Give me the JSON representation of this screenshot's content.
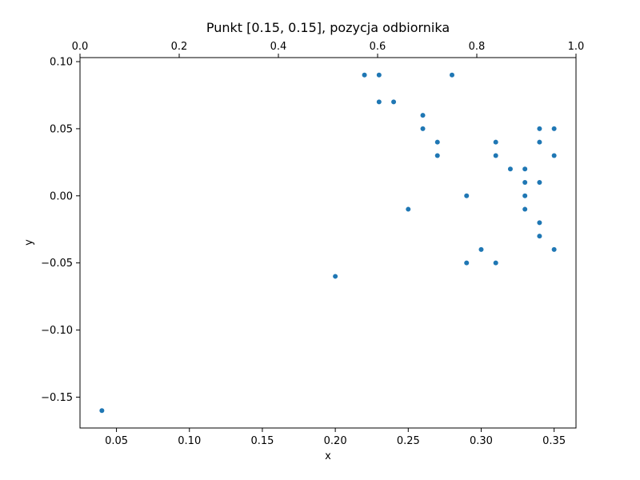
{
  "chart_data": {
    "type": "scatter",
    "title": "Punkt [0.15, 0.15], pozycja odbiornika",
    "xlabel": "x",
    "ylabel": "y",
    "xlim": [
      0.025,
      0.365
    ],
    "ylim": [
      -0.173,
      0.103
    ],
    "x_ticks": [
      0.05,
      0.1,
      0.15,
      0.2,
      0.25,
      0.3,
      0.35
    ],
    "x_tick_labels": [
      "0.05",
      "0.10",
      "0.15",
      "0.20",
      "0.25",
      "0.30",
      "0.35"
    ],
    "y_ticks": [
      -0.15,
      -0.1,
      -0.05,
      0.0,
      0.05,
      0.1
    ],
    "y_tick_labels": [
      "−0.15",
      "−0.10",
      "−0.05",
      "0.00",
      "0.05",
      "0.10"
    ],
    "top_xlim": [
      0.0,
      1.0
    ],
    "top_x_ticks": [
      0.0,
      0.2,
      0.4,
      0.6,
      0.8,
      1.0
    ],
    "top_x_tick_labels": [
      "0.0",
      "0.2",
      "0.4",
      "0.6",
      "0.8",
      "1.0"
    ],
    "grid": false,
    "color": "#1f77b4",
    "points": [
      [
        0.04,
        -0.16
      ],
      [
        0.2,
        -0.06
      ],
      [
        0.22,
        0.09
      ],
      [
        0.23,
        0.09
      ],
      [
        0.23,
        0.07
      ],
      [
        0.24,
        0.07
      ],
      [
        0.25,
        -0.01
      ],
      [
        0.26,
        0.06
      ],
      [
        0.26,
        0.05
      ],
      [
        0.27,
        0.04
      ],
      [
        0.27,
        0.03
      ],
      [
        0.28,
        0.09
      ],
      [
        0.29,
        0.0
      ],
      [
        0.29,
        -0.05
      ],
      [
        0.3,
        -0.04
      ],
      [
        0.31,
        0.04
      ],
      [
        0.31,
        0.03
      ],
      [
        0.31,
        -0.05
      ],
      [
        0.32,
        0.02
      ],
      [
        0.33,
        0.02
      ],
      [
        0.33,
        0.01
      ],
      [
        0.33,
        0.0
      ],
      [
        0.33,
        -0.01
      ],
      [
        0.34,
        0.05
      ],
      [
        0.34,
        0.04
      ],
      [
        0.34,
        0.01
      ],
      [
        0.34,
        -0.02
      ],
      [
        0.34,
        -0.03
      ],
      [
        0.35,
        0.05
      ],
      [
        0.35,
        0.03
      ],
      [
        0.35,
        -0.04
      ]
    ]
  }
}
